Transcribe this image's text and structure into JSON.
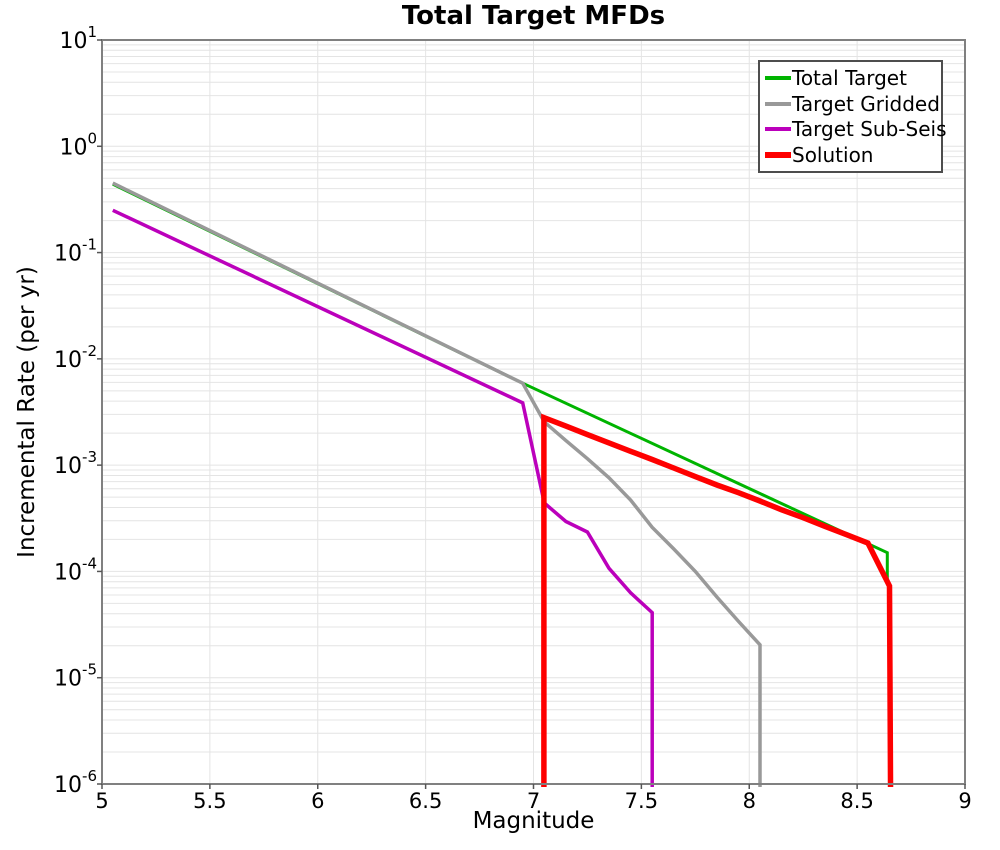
{
  "chart_data": {
    "type": "line",
    "title": "Total Target MFDs",
    "xlabel": "Magnitude",
    "ylabel": "Incremental Rate (per yr)",
    "x_range": [
      5,
      9
    ],
    "y_log_range": [
      -6,
      1
    ],
    "x_axis_scale": "linear",
    "y_axis_scale": "log",
    "grid": {
      "on": true,
      "color": "#e4e4e4",
      "vertical_at": [
        5.5,
        6,
        6.5,
        7,
        7.5,
        8,
        8.5
      ]
    },
    "border_color": "#808080",
    "background_color": "#ffffff",
    "x_ticks": [
      {
        "v": 5,
        "label": "5"
      },
      {
        "v": 5.5,
        "label": "5.5"
      },
      {
        "v": 6,
        "label": "6"
      },
      {
        "v": 6.5,
        "label": "6.5"
      },
      {
        "v": 7,
        "label": "7"
      },
      {
        "v": 7.5,
        "label": "7.5"
      },
      {
        "v": 8,
        "label": "8"
      },
      {
        "v": 8.5,
        "label": "8.5"
      },
      {
        "v": 9,
        "label": "9"
      }
    ],
    "y_ticks": [
      {
        "base": "10",
        "exp": "1"
      },
      {
        "base": "10",
        "exp": "0"
      },
      {
        "base": "10",
        "exp": "-1"
      },
      {
        "base": "10",
        "exp": "-2"
      },
      {
        "base": "10",
        "exp": "-3"
      },
      {
        "base": "10",
        "exp": "-4"
      },
      {
        "base": "10",
        "exp": "-5"
      },
      {
        "base": "10",
        "exp": "-6"
      }
    ],
    "legend_position": "top-right",
    "series": [
      {
        "name": "Total Target",
        "color": "#00b400",
        "width": 3,
        "points": [
          [
            5.05,
            0.44
          ],
          [
            6.95,
            0.0059
          ],
          [
            8.64,
            0.00015
          ],
          [
            8.64,
            7.8e-05
          ]
        ]
      },
      {
        "name": "Target Gridded",
        "color": "#999999",
        "width": 3.5,
        "points": [
          [
            5.05,
            0.45
          ],
          [
            6.95,
            0.0059
          ],
          [
            7.05,
            0.00255
          ],
          [
            7.15,
            0.0017
          ],
          [
            7.25,
            0.00115
          ],
          [
            7.35,
            0.00076
          ],
          [
            7.45,
            0.00047
          ],
          [
            7.55,
            0.00026
          ],
          [
            7.65,
            0.000163
          ],
          [
            7.75,
            0.0001
          ],
          [
            7.85,
            5.75e-05
          ],
          [
            7.95,
            3.39e-05
          ],
          [
            8.05,
            2.04e-05
          ],
          [
            8.05,
            7e-07
          ]
        ]
      },
      {
        "name": "Target Sub-Seis",
        "color": "#bb00bb",
        "width": 3.5,
        "points": [
          [
            5.05,
            0.25
          ],
          [
            6.95,
            0.00385
          ],
          [
            7.05,
            0.00044
          ],
          [
            7.15,
            0.000295
          ],
          [
            7.25,
            0.000235
          ],
          [
            7.35,
            0.000107
          ],
          [
            7.45,
            6.3e-05
          ],
          [
            7.55,
            4.1e-05
          ],
          [
            7.55,
            7e-07
          ]
        ]
      },
      {
        "name": "Solution",
        "color": "#fe0000",
        "width": 5.5,
        "points": [
          [
            7.048,
            7e-07
          ],
          [
            7.048,
            0.0028
          ],
          [
            7.15,
            0.00233
          ],
          [
            7.25,
            0.00194
          ],
          [
            7.35,
            0.00162
          ],
          [
            7.45,
            0.00135
          ],
          [
            7.55,
            0.00113
          ],
          [
            7.65,
            0.00094
          ],
          [
            7.75,
            0.00078
          ],
          [
            7.85,
            0.00065
          ],
          [
            7.95,
            0.00055
          ],
          [
            8.05,
            0.00046
          ],
          [
            8.15,
            0.00038
          ],
          [
            8.25,
            0.00032
          ],
          [
            8.35,
            0.000266
          ],
          [
            8.45,
            0.000222
          ],
          [
            8.55,
            0.000185
          ],
          [
            8.65,
            7.3e-05
          ],
          [
            8.655,
            7e-07
          ]
        ]
      }
    ]
  }
}
